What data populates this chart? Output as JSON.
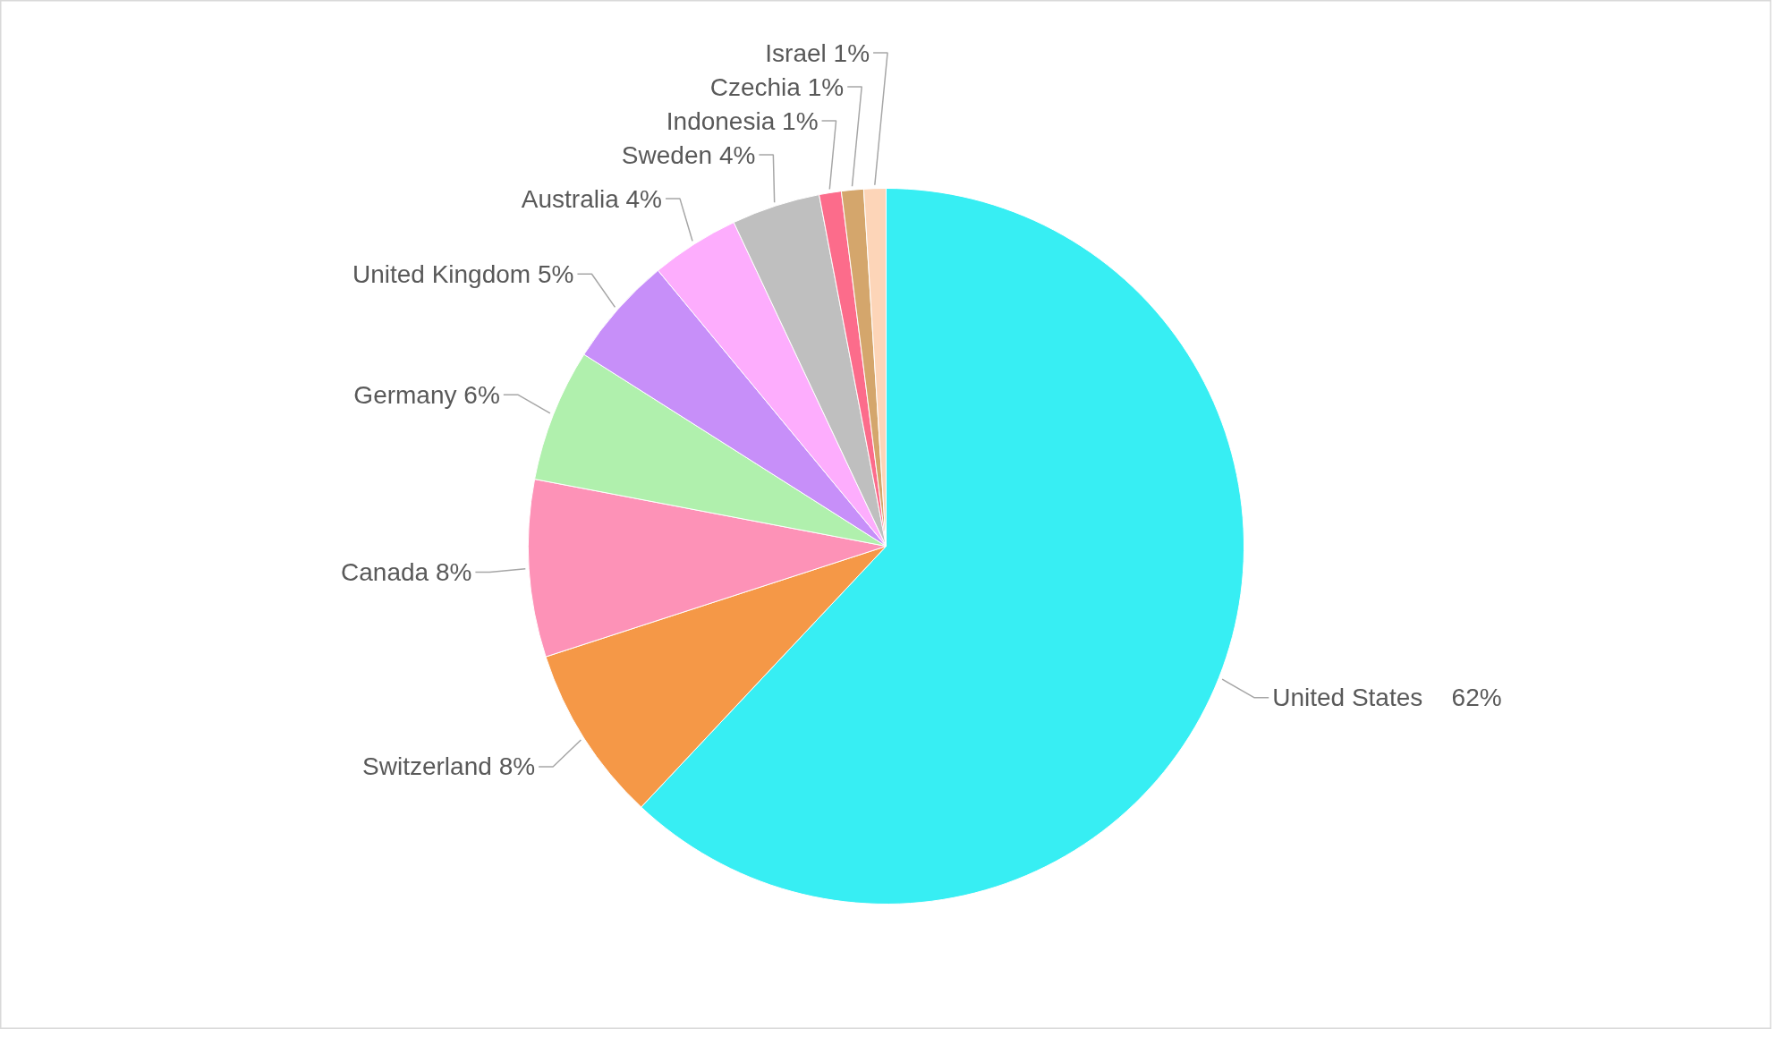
{
  "chart_data": {
    "type": "pie",
    "categories": [
      "United States",
      "Switzerland",
      "Canada",
      "Germany",
      "United Kingdom",
      "Australia",
      "Sweden",
      "Indonesia",
      "Czechia",
      "Israel"
    ],
    "values": [
      62,
      8,
      8,
      6,
      5,
      4,
      4,
      1,
      1,
      1
    ],
    "colors": [
      "#37eef3",
      "#f59847",
      "#fd92b7",
      "#b0f0ad",
      "#c78ff9",
      "#fdadfd",
      "#bfbfbf",
      "#fc6c8b",
      "#d4a66c",
      "#fdd5b8"
    ],
    "value_labels": [
      "62%",
      "8%",
      "8%",
      "6%",
      "5%",
      "4%",
      "4%",
      "1%",
      "1%",
      "1%"
    ]
  }
}
